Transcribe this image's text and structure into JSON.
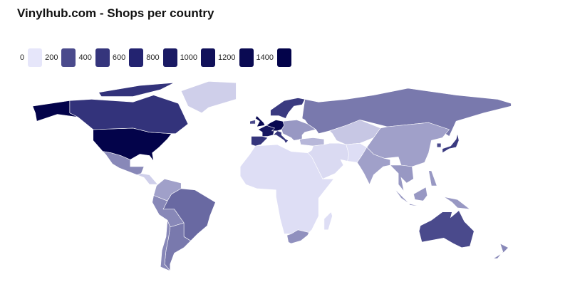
{
  "chart_data": {
    "type": "choropleth",
    "title": "Vinylhub.com - Shops per country",
    "legend": {
      "labels": [
        0,
        200,
        400,
        600,
        800,
        1000,
        1200,
        1400
      ],
      "colors": [
        "#e6e6fa",
        "#4a4a8c",
        "#35357c",
        "#232370",
        "#1a1a64",
        "#11115a",
        "#0a0a52",
        "#03034a"
      ]
    },
    "values": [
      1450,
      420,
      30,
      120,
      30,
      90,
      160,
      120,
      140,
      120,
      10,
      110,
      10,
      1200,
      200,
      900,
      400,
      1250,
      400,
      350,
      100,
      60,
      140,
      40,
      15,
      10,
      90,
      90,
      100,
      350,
      200,
      100,
      100,
      200,
      120
    ]
  }
}
